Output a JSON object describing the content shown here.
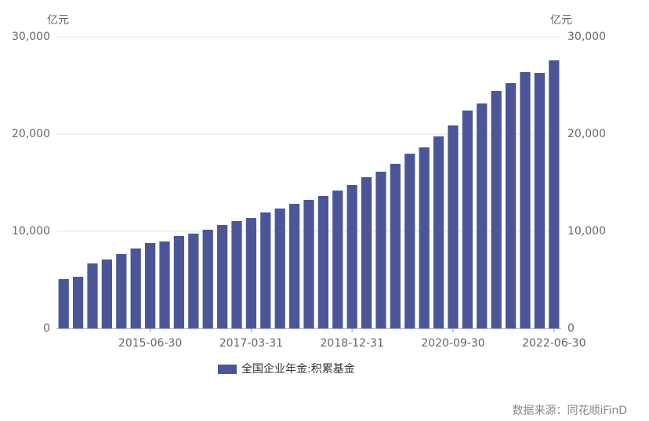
{
  "chart_data": {
    "type": "bar",
    "y_unit": "亿元",
    "y2_unit": "亿元",
    "categories": [
      null,
      null,
      null,
      null,
      null,
      null,
      "2015-06-30",
      null,
      null,
      null,
      null,
      null,
      null,
      "2017-03-31",
      null,
      null,
      null,
      null,
      null,
      null,
      "2018-12-31",
      null,
      null,
      null,
      null,
      null,
      null,
      "2020-09-30",
      null,
      null,
      null,
      null,
      null,
      null,
      "2022-06-30"
    ],
    "series": [
      {
        "name": "全国企业年金:积累基金",
        "color": "#4b5699",
        "values": [
          5080,
          5320,
          6690,
          7100,
          7660,
          8230,
          8790,
          8950,
          9520,
          9760,
          10160,
          10650,
          11050,
          11370,
          11940,
          12340,
          12820,
          13230,
          13630,
          14190,
          14760,
          15560,
          16130,
          16940,
          17980,
          18630,
          19760,
          20890,
          22420,
          23150,
          24440,
          25240,
          26370,
          26290,
          27580
        ]
      }
    ],
    "ylim": [
      0,
      30000
    ],
    "yticks": [
      0,
      {
        "value": 10000,
        "label": "10,000"
      },
      {
        "value": 20000,
        "label": "20,000"
      },
      {
        "value": 30000,
        "label": "30,000"
      }
    ],
    "y2lim": [
      0,
      30000
    ],
    "y2ticks": [
      0,
      {
        "value": 10000,
        "label": "10,000"
      },
      {
        "value": 20000,
        "label": "20,000"
      },
      {
        "value": 30000,
        "label": "30,000"
      }
    ],
    "grid": true,
    "source": "数据来源：同花顺iFinD"
  }
}
